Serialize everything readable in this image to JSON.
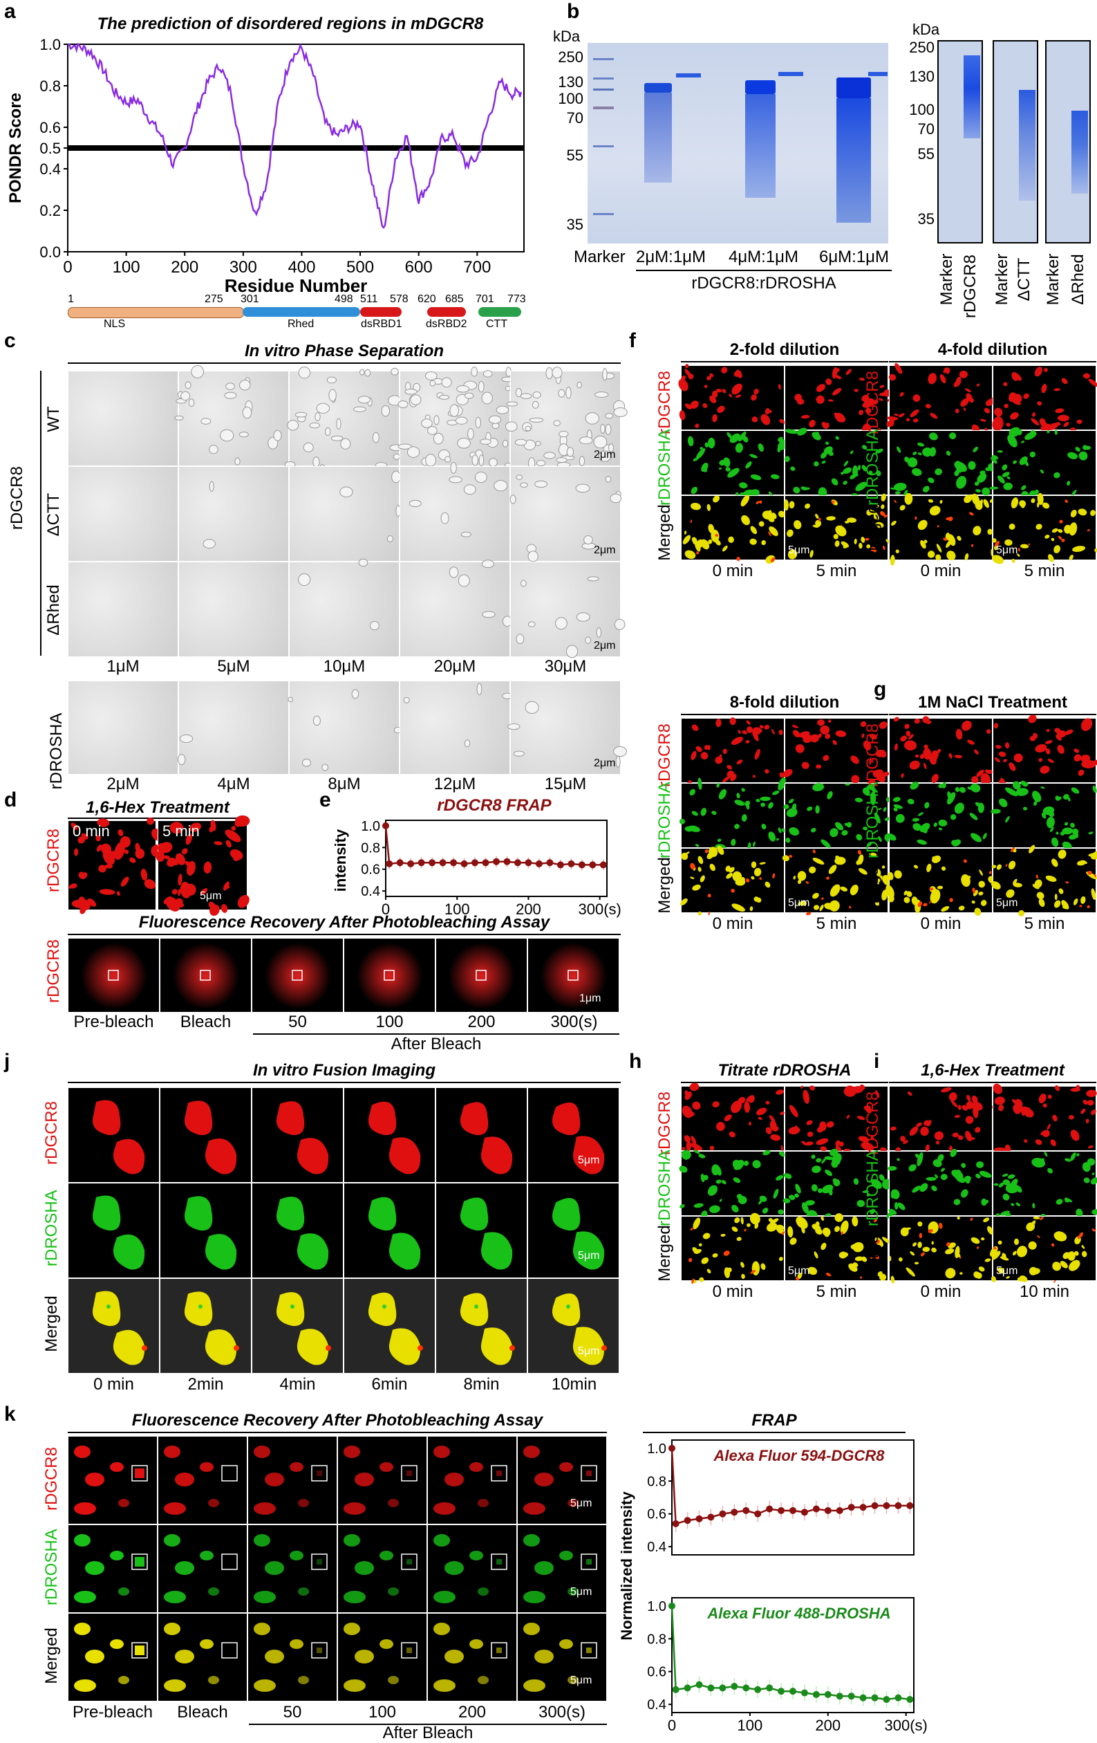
{
  "panels": {
    "a": "a",
    "b": "b",
    "c": "c",
    "d": "d",
    "e": "e",
    "f": "f",
    "g": "g",
    "h": "h",
    "i": "i",
    "j": "j",
    "k": "k"
  },
  "a": {
    "domain_rows": [
      "NLS",
      "Rhed",
      "dsRBD1",
      "dsRBD2",
      "CTT"
    ],
    "domain_positions": [
      "1",
      "275",
      "301",
      "498",
      "511",
      "578",
      "620",
      "685",
      "701",
      "773"
    ]
  },
  "b": {
    "kda": "kDa",
    "ladder_left": [
      "250",
      "130",
      "100",
      "70",
      "55",
      "35"
    ],
    "ladder_mid": [
      "100",
      "70",
      "55",
      "35"
    ],
    "lanes": [
      "Marker",
      "2μM:1μM",
      "4μM:1μM",
      "6μM:1μM"
    ],
    "group_label": "rDGCR8:rDROSHA",
    "right_lanes": [
      "Marker",
      "rDGCR8",
      "Marker",
      "ΔCTT",
      "Marker",
      "ΔRhed"
    ],
    "kda2": "kDa",
    "ladder_right": [
      "250",
      "130",
      "100",
      "70",
      "55",
      "35"
    ]
  },
  "c": {
    "title": "In vitro Phase Separation",
    "group_label": "rDGCR8",
    "rows": [
      "WT",
      "ΔCTT",
      "ΔRhed"
    ],
    "conc_top": [
      "1μM",
      "5μM",
      "10μM",
      "20μM",
      "30μM"
    ],
    "row_drosha": "rDROSHA",
    "conc_bottom": [
      "2μM",
      "4μM",
      "8μM",
      "12μM",
      "15μM"
    ],
    "scale": "2μm"
  },
  "d": {
    "title": "1,6-Hex Treatment",
    "row": "rDGCR8",
    "times": [
      "0 min",
      "5 min"
    ],
    "scale": "5μm",
    "frap_title": "Fluorescence Recovery After Photobleaching Assay",
    "frap_labels": [
      "Pre-bleach",
      "Bleach",
      "50",
      "100",
      "200",
      "300(s)"
    ],
    "after_bleach": "After  Bleach",
    "frap_scale": "1μm"
  },
  "e": {
    "chart_title": "rDGCR8  FRAP"
  },
  "f": {
    "titles": [
      "2-fold dilution",
      "4-fold dilution",
      "8-fold dilution"
    ],
    "rows": [
      "rDGCR8",
      "rDROSHA",
      "Merged"
    ],
    "times": [
      "0 min",
      "5 min"
    ],
    "scale": "5μm"
  },
  "g": {
    "title": "1M NaCl Treatment",
    "times": [
      "0 min",
      "5 min"
    ]
  },
  "h": {
    "title": "Titrate rDROSHA",
    "times": [
      "0 min",
      "5 min"
    ]
  },
  "i": {
    "title": "1,6-Hex Treatment",
    "times": [
      "0 min",
      "10 min"
    ]
  },
  "j": {
    "title": "In vitro Fusion Imaging",
    "times": [
      "0 min",
      "2min",
      "4min",
      "6min",
      "8min",
      "10min"
    ]
  },
  "k": {
    "title": "Fluorescence Recovery After Photobleaching Assay",
    "labels": [
      "Pre-bleach",
      "Bleach",
      "50",
      "100",
      "200",
      "300(s)"
    ],
    "after_bleach": "After  Bleach",
    "frap_title": "FRAP"
  },
  "chart_data": [
    {
      "type": "line",
      "title": "The prediction of disordered regions in mDGCR8",
      "xlabel": "Residue Number",
      "ylabel": "PONDR Score",
      "xlim": [
        0,
        780
      ],
      "ylim": [
        0.0,
        1.0
      ],
      "xticks": [
        "0",
        "100",
        "200",
        "300",
        "400",
        "500",
        "600",
        "700"
      ],
      "yticks": [
        "0.0",
        "0.2",
        "0.4",
        "0.5",
        "0.6",
        "0.8",
        "1.0"
      ],
      "threshold": 0.5,
      "x": [
        0,
        20,
        40,
        60,
        80,
        100,
        120,
        140,
        160,
        180,
        200,
        220,
        240,
        260,
        280,
        300,
        320,
        340,
        360,
        380,
        400,
        420,
        440,
        460,
        480,
        500,
        520,
        540,
        560,
        580,
        600,
        620,
        640,
        660,
        680,
        700,
        720,
        740,
        760,
        775
      ],
      "values": [
        1.0,
        0.99,
        0.96,
        0.88,
        0.77,
        0.72,
        0.73,
        0.64,
        0.56,
        0.42,
        0.5,
        0.68,
        0.82,
        0.9,
        0.76,
        0.42,
        0.18,
        0.33,
        0.72,
        0.93,
        0.98,
        0.85,
        0.62,
        0.56,
        0.6,
        0.62,
        0.34,
        0.1,
        0.45,
        0.56,
        0.25,
        0.34,
        0.55,
        0.56,
        0.42,
        0.45,
        0.65,
        0.82,
        0.76,
        0.77
      ]
    },
    {
      "type": "line",
      "title": "rDGCR8  FRAP",
      "xlabel": "",
      "ylabel": "intensity",
      "xlim": [
        0,
        310
      ],
      "ylim": [
        0.35,
        1.05
      ],
      "xticks": [
        "0",
        "100",
        "200",
        "300(s)"
      ],
      "yticks": [
        "0.4",
        "0.6",
        "0.8",
        "1.0"
      ],
      "x": [
        0,
        5,
        20,
        35,
        50,
        65,
        80,
        95,
        110,
        125,
        140,
        155,
        170,
        185,
        200,
        215,
        230,
        245,
        260,
        275,
        290,
        305
      ],
      "values": [
        1.0,
        0.65,
        0.66,
        0.65,
        0.66,
        0.66,
        0.66,
        0.66,
        0.65,
        0.66,
        0.66,
        0.67,
        0.67,
        0.66,
        0.66,
        0.65,
        0.66,
        0.64,
        0.65,
        0.64,
        0.64,
        0.64
      ]
    },
    {
      "type": "line",
      "title": "Alexa Fluor 594-DGCR8",
      "xlabel": "",
      "ylabel": "Normalized intensity",
      "xlim": [
        0,
        310
      ],
      "ylim": [
        0.35,
        1.05
      ],
      "xticks": [
        "0",
        "100",
        "200",
        "300(s)"
      ],
      "yticks": [
        "0.4",
        "0.6",
        "0.8",
        "1.0"
      ],
      "x": [
        0,
        5,
        20,
        35,
        50,
        65,
        80,
        95,
        110,
        125,
        140,
        155,
        170,
        185,
        200,
        215,
        230,
        245,
        260,
        275,
        290,
        305
      ],
      "values": [
        1.0,
        0.54,
        0.56,
        0.57,
        0.58,
        0.6,
        0.61,
        0.62,
        0.6,
        0.63,
        0.62,
        0.62,
        0.61,
        0.63,
        0.62,
        0.62,
        0.64,
        0.64,
        0.65,
        0.65,
        0.65,
        0.65
      ]
    },
    {
      "type": "line",
      "title": "Alexa Fluor 488-DROSHA",
      "xlabel": "",
      "ylabel": "Normalized intensity",
      "xlim": [
        0,
        310
      ],
      "ylim": [
        0.35,
        1.05
      ],
      "xticks": [
        "0",
        "100",
        "200",
        "300(s)"
      ],
      "yticks": [
        "0.4",
        "0.6",
        "0.8",
        "1.0"
      ],
      "x": [
        0,
        5,
        20,
        35,
        50,
        65,
        80,
        95,
        110,
        125,
        140,
        155,
        170,
        185,
        200,
        215,
        230,
        245,
        260,
        275,
        290,
        305
      ],
      "values": [
        1.0,
        0.49,
        0.5,
        0.52,
        0.5,
        0.5,
        0.51,
        0.5,
        0.49,
        0.5,
        0.48,
        0.48,
        0.47,
        0.46,
        0.46,
        0.45,
        0.45,
        0.44,
        0.44,
        0.43,
        0.44,
        0.43
      ]
    }
  ],
  "colors": {
    "purple": "#8a2be2",
    "red": "#e01010",
    "green": "#18c018",
    "yellow": "#e8e000",
    "darkred": "#8b1010",
    "darkgreen": "#1a8a1a",
    "nls": "#f0b080",
    "rhed": "#2f8fd8",
    "dsrbd": "#d81818",
    "ctt": "#2aa04a"
  }
}
